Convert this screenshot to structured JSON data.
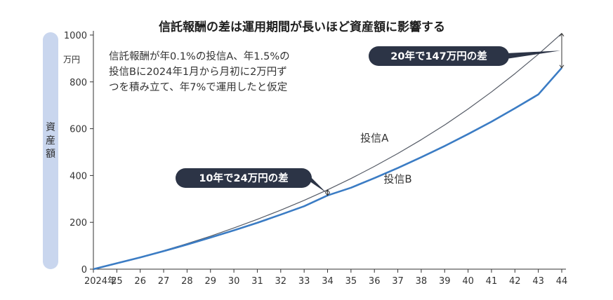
{
  "chart_data": {
    "type": "line",
    "title": "信託報酬の差は運用期間が長いほど資産額に影響する",
    "ylabel": "資産額",
    "yunit": "万円",
    "note_lines": [
      "信託報酬が年0.1%の投信A、年1.5%の",
      "投信Bに2024年1月から月初に2万円ず",
      "つを積み立て、年7%で運用したと仮定"
    ],
    "x_tick_labels": [
      "2024年",
      "25",
      "26",
      "27",
      "28",
      "29",
      "30",
      "31",
      "32",
      "33",
      "34",
      "35",
      "36",
      "37",
      "38",
      "39",
      "40",
      "41",
      "42",
      "43",
      "44"
    ],
    "x_ticks": [
      2024,
      2025,
      2026,
      2027,
      2028,
      2029,
      2030,
      2031,
      2032,
      2033,
      2034,
      2035,
      2036,
      2037,
      2038,
      2039,
      2040,
      2041,
      2042,
      2043,
      2044
    ],
    "y_ticks": [
      0,
      200,
      400,
      600,
      800,
      1000
    ],
    "ylim": [
      0,
      1000
    ],
    "xlim": [
      2024,
      2044
    ],
    "series": [
      {
        "name": "投信A",
        "color": "#555b66",
        "x": [
          2024,
          2025,
          2026,
          2027,
          2028,
          2029,
          2030,
          2031,
          2032,
          2033,
          2034,
          2035,
          2036,
          2037,
          2038,
          2039,
          2040,
          2041,
          2042,
          2043,
          2044
        ],
        "values": [
          0,
          25,
          51,
          79,
          109,
          141,
          176,
          213,
          252,
          294,
          339,
          387,
          439,
          494,
          553,
          616,
          684,
          757,
          835,
          918,
          1007
        ]
      },
      {
        "name": "投信B",
        "color": "#3b7cc4",
        "x": [
          2024,
          2025,
          2026,
          2027,
          2028,
          2029,
          2030,
          2031,
          2032,
          2033,
          2034,
          2035,
          2036,
          2037,
          2038,
          2039,
          2040,
          2041,
          2042,
          2043,
          2044
        ],
        "values": [
          0,
          25,
          50,
          77,
          105,
          135,
          166,
          198,
          233,
          269,
          315,
          348,
          389,
          432,
          478,
          526,
          577,
          630,
          687,
          746,
          860
        ]
      }
    ],
    "callouts": [
      {
        "text": "10年で24万円の差",
        "x": 2034,
        "y_top": 339,
        "y_bottom": 315
      },
      {
        "text": "20年で147万円の差",
        "x": 2044,
        "y_top": 1007,
        "y_bottom": 860
      }
    ]
  }
}
